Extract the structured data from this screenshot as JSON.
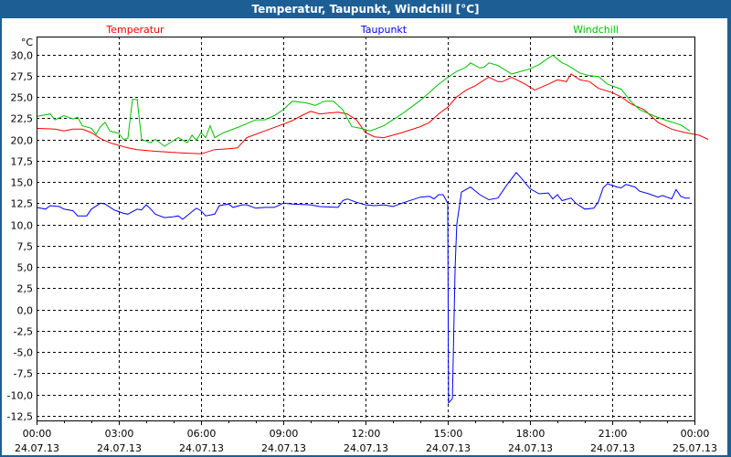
{
  "window": {
    "title": "Temperatur, Taupunkt, Windchill [°C]"
  },
  "chart_data": {
    "type": "line",
    "title": "Temperatur, Taupunkt, Windchill [°C]",
    "ylabel": "°C",
    "xlabel": "",
    "xlim_hours": [
      0,
      24
    ],
    "ylim": [
      -13.1,
      32.1
    ],
    "grid": true,
    "legend_placement": "top",
    "yticks": [
      30,
      27.5,
      25,
      22.5,
      20,
      17.5,
      15,
      12.5,
      10,
      7.5,
      5,
      2.5,
      0,
      -2.5,
      -5,
      -7.5,
      -10,
      -12.5
    ],
    "ytick_labels": [
      "30,0",
      "27,5",
      "25,0",
      "22,5",
      "20,0",
      "17,5",
      "15,0",
      "12,5",
      "10,0",
      "7,5",
      "5,0",
      "2,5",
      "0,0",
      "-2,5",
      "-5,0",
      "-7,5",
      "-10,0",
      "-12,5"
    ],
    "xticks": [
      {
        "hour": 0,
        "time": "00:00",
        "date": "24.07.13"
      },
      {
        "hour": 3,
        "time": "03:00",
        "date": "24.07.13"
      },
      {
        "hour": 6,
        "time": "06:00",
        "date": "24.07.13"
      },
      {
        "hour": 9,
        "time": "09:00",
        "date": "24.07.13"
      },
      {
        "hour": 12,
        "time": "12:00",
        "date": "24.07.13"
      },
      {
        "hour": 15,
        "time": "15:00",
        "date": "24.07.13"
      },
      {
        "hour": 18,
        "time": "18:00",
        "date": "24.07.13"
      },
      {
        "hour": 21,
        "time": "21:00",
        "date": "24.07.13"
      },
      {
        "hour": 24,
        "time": "00:00",
        "date": "25.07.13"
      }
    ],
    "series": [
      {
        "name": "Temperatur",
        "color": "#ff0000",
        "points": [
          [
            0,
            21.3
          ],
          [
            0.67,
            21.2
          ],
          [
            1,
            21.0
          ],
          [
            1.33,
            21.2
          ],
          [
            1.67,
            21.2
          ],
          [
            2,
            20.8
          ],
          [
            2.33,
            20.1
          ],
          [
            2.67,
            19.6
          ],
          [
            3,
            19.3
          ],
          [
            3.33,
            19.0
          ],
          [
            3.67,
            18.8
          ],
          [
            4.33,
            18.6
          ],
          [
            5.33,
            18.4
          ],
          [
            6,
            18.3
          ],
          [
            6.5,
            18.8
          ],
          [
            7,
            18.9
          ],
          [
            7.33,
            19.0
          ],
          [
            7.67,
            20.2
          ],
          [
            8.33,
            21.0
          ],
          [
            9,
            21.8
          ],
          [
            9.33,
            22.2
          ],
          [
            9.67,
            22.8
          ],
          [
            10,
            23.3
          ],
          [
            10.33,
            23.0
          ],
          [
            11,
            23.2
          ],
          [
            11.33,
            23.0
          ],
          [
            11.67,
            22.3
          ],
          [
            12,
            20.8
          ],
          [
            12.33,
            20.3
          ],
          [
            12.67,
            20.2
          ],
          [
            13,
            20.5
          ],
          [
            13.33,
            20.8
          ],
          [
            14,
            21.5
          ],
          [
            14.33,
            22.0
          ],
          [
            14.67,
            23.0
          ],
          [
            15,
            23.8
          ],
          [
            15.33,
            25.0
          ],
          [
            15.67,
            25.8
          ],
          [
            16,
            26.3
          ],
          [
            16.33,
            27.0
          ],
          [
            16.5,
            27.3
          ],
          [
            16.83,
            26.8
          ],
          [
            17,
            26.8
          ],
          [
            17.33,
            27.3
          ],
          [
            17.83,
            26.5
          ],
          [
            18.17,
            25.8
          ],
          [
            18.67,
            26.5
          ],
          [
            19,
            27.0
          ],
          [
            19.33,
            26.8
          ],
          [
            19.5,
            27.7
          ],
          [
            19.83,
            27.0
          ],
          [
            20.17,
            26.8
          ],
          [
            20.5,
            26.0
          ],
          [
            21,
            25.5
          ],
          [
            21.33,
            25.0
          ],
          [
            21.67,
            24.2
          ],
          [
            22.17,
            23.5
          ],
          [
            22.67,
            22.0
          ],
          [
            23.17,
            21.2
          ],
          [
            23.67,
            20.8
          ],
          [
            24.17,
            20.5
          ],
          [
            24.5,
            20.0
          ]
        ]
      },
      {
        "name": "Taupunkt",
        "color": "#0000ff",
        "points": [
          [
            0,
            12.0
          ],
          [
            0.33,
            11.8
          ],
          [
            0.5,
            12.2
          ],
          [
            0.83,
            12.1
          ],
          [
            1,
            11.8
          ],
          [
            1.33,
            11.6
          ],
          [
            1.5,
            11.0
          ],
          [
            1.83,
            11.0
          ],
          [
            2,
            11.8
          ],
          [
            2.33,
            12.5
          ],
          [
            2.5,
            12.4
          ],
          [
            2.83,
            11.7
          ],
          [
            3.17,
            11.3
          ],
          [
            3.33,
            11.2
          ],
          [
            3.67,
            11.8
          ],
          [
            3.83,
            11.7
          ],
          [
            4,
            12.3
          ],
          [
            4.17,
            11.8
          ],
          [
            4.33,
            11.2
          ],
          [
            4.67,
            10.8
          ],
          [
            5,
            10.9
          ],
          [
            5.17,
            11.0
          ],
          [
            5.33,
            10.6
          ],
          [
            5.67,
            11.5
          ],
          [
            5.83,
            11.9
          ],
          [
            6,
            11.6
          ],
          [
            6.17,
            11.0
          ],
          [
            6.5,
            11.2
          ],
          [
            6.67,
            12.2
          ],
          [
            7,
            12.4
          ],
          [
            7.17,
            12.0
          ],
          [
            7.5,
            12.3
          ],
          [
            7.67,
            12.3
          ],
          [
            8,
            11.9
          ],
          [
            8.33,
            12.0
          ],
          [
            8.67,
            12.0
          ],
          [
            9,
            12.5
          ],
          [
            9.33,
            12.4
          ],
          [
            10,
            12.3
          ],
          [
            10.33,
            12.1
          ],
          [
            11,
            12.0
          ],
          [
            11.17,
            12.8
          ],
          [
            11.33,
            13.0
          ],
          [
            11.67,
            12.6
          ],
          [
            12,
            12.3
          ],
          [
            12.33,
            12.2
          ],
          [
            12.67,
            12.3
          ],
          [
            13,
            12.1
          ],
          [
            13.33,
            12.5
          ],
          [
            14,
            13.2
          ],
          [
            14.33,
            13.3
          ],
          [
            14.5,
            13.0
          ],
          [
            14.67,
            13.5
          ],
          [
            14.83,
            13.5
          ],
          [
            15,
            12.5
          ],
          [
            15.03,
            -11.0
          ],
          [
            15.17,
            -10.5
          ],
          [
            15.27,
            5.0
          ],
          [
            15.33,
            10.0
          ],
          [
            15.5,
            13.8
          ],
          [
            15.83,
            14.4
          ],
          [
            16.17,
            13.5
          ],
          [
            16.5,
            12.9
          ],
          [
            16.83,
            13.1
          ],
          [
            17.17,
            14.7
          ],
          [
            17.5,
            16.1
          ],
          [
            17.67,
            15.5
          ],
          [
            18,
            14.2
          ],
          [
            18.33,
            13.6
          ],
          [
            18.67,
            13.7
          ],
          [
            18.83,
            13.0
          ],
          [
            19,
            13.5
          ],
          [
            19.17,
            12.8
          ],
          [
            19.5,
            13.1
          ],
          [
            19.67,
            12.5
          ],
          [
            20,
            11.8
          ],
          [
            20.33,
            11.9
          ],
          [
            20.5,
            12.7
          ],
          [
            20.67,
            14.3
          ],
          [
            20.83,
            14.8
          ],
          [
            21.17,
            14.4
          ],
          [
            21.33,
            14.3
          ],
          [
            21.5,
            14.7
          ],
          [
            21.83,
            14.4
          ],
          [
            22,
            13.9
          ],
          [
            22.33,
            13.6
          ],
          [
            22.67,
            13.2
          ],
          [
            22.83,
            13.4
          ],
          [
            23.17,
            13.0
          ],
          [
            23.33,
            14.1
          ],
          [
            23.5,
            13.3
          ],
          [
            23.67,
            13.1
          ],
          [
            23.83,
            13.1
          ]
        ]
      },
      {
        "name": "Windchill",
        "color": "#00c000",
        "points": [
          [
            0,
            22.7
          ],
          [
            0.5,
            23.0
          ],
          [
            0.67,
            22.3
          ],
          [
            1,
            22.8
          ],
          [
            1.33,
            22.4
          ],
          [
            1.5,
            22.6
          ],
          [
            1.67,
            21.6
          ],
          [
            2,
            21.3
          ],
          [
            2.17,
            20.6
          ],
          [
            2.33,
            21.5
          ],
          [
            2.5,
            22.0
          ],
          [
            2.67,
            21.0
          ],
          [
            3,
            20.7
          ],
          [
            3.17,
            20.0
          ],
          [
            3.33,
            20.1
          ],
          [
            3.5,
            24.7
          ],
          [
            3.67,
            24.7
          ],
          [
            3.83,
            20.0
          ],
          [
            4.17,
            19.6
          ],
          [
            4.33,
            20.0
          ],
          [
            4.67,
            19.2
          ],
          [
            5.17,
            20.2
          ],
          [
            5.5,
            19.6
          ],
          [
            5.67,
            20.5
          ],
          [
            5.83,
            19.9
          ],
          [
            6,
            20.8
          ],
          [
            6.17,
            20.2
          ],
          [
            6.33,
            21.6
          ],
          [
            6.5,
            20.2
          ],
          [
            6.83,
            20.8
          ],
          [
            7.33,
            21.4
          ],
          [
            8,
            22.3
          ],
          [
            8.33,
            22.3
          ],
          [
            8.67,
            22.8
          ],
          [
            9,
            23.5
          ],
          [
            9.33,
            24.5
          ],
          [
            9.83,
            24.3
          ],
          [
            10.17,
            24.0
          ],
          [
            10.5,
            24.5
          ],
          [
            10.83,
            24.5
          ],
          [
            11.17,
            23.5
          ],
          [
            11.5,
            21.5
          ],
          [
            11.83,
            21.3
          ],
          [
            12.17,
            21.0
          ],
          [
            12.67,
            21.6
          ],
          [
            13,
            22.3
          ],
          [
            13.33,
            23.0
          ],
          [
            13.67,
            23.8
          ],
          [
            14,
            24.6
          ],
          [
            14.33,
            25.5
          ],
          [
            14.67,
            26.5
          ],
          [
            15,
            27.3
          ],
          [
            15.33,
            28.0
          ],
          [
            15.67,
            28.5
          ],
          [
            15.83,
            29.0
          ],
          [
            16.17,
            28.4
          ],
          [
            16.33,
            28.5
          ],
          [
            16.5,
            29.0
          ],
          [
            16.83,
            28.7
          ],
          [
            17.33,
            27.7
          ],
          [
            17.67,
            28.0
          ],
          [
            18,
            28.3
          ],
          [
            18.33,
            28.8
          ],
          [
            18.83,
            29.9
          ],
          [
            19.17,
            29.0
          ],
          [
            19.33,
            28.8
          ],
          [
            19.83,
            27.8
          ],
          [
            20.17,
            27.5
          ],
          [
            20.5,
            27.4
          ],
          [
            20.83,
            26.5
          ],
          [
            21.33,
            25.9
          ],
          [
            21.67,
            24.5
          ],
          [
            22,
            23.5
          ],
          [
            22.5,
            22.8
          ],
          [
            23,
            22.2
          ],
          [
            23.5,
            21.7
          ],
          [
            23.83,
            21.0
          ]
        ]
      }
    ]
  }
}
